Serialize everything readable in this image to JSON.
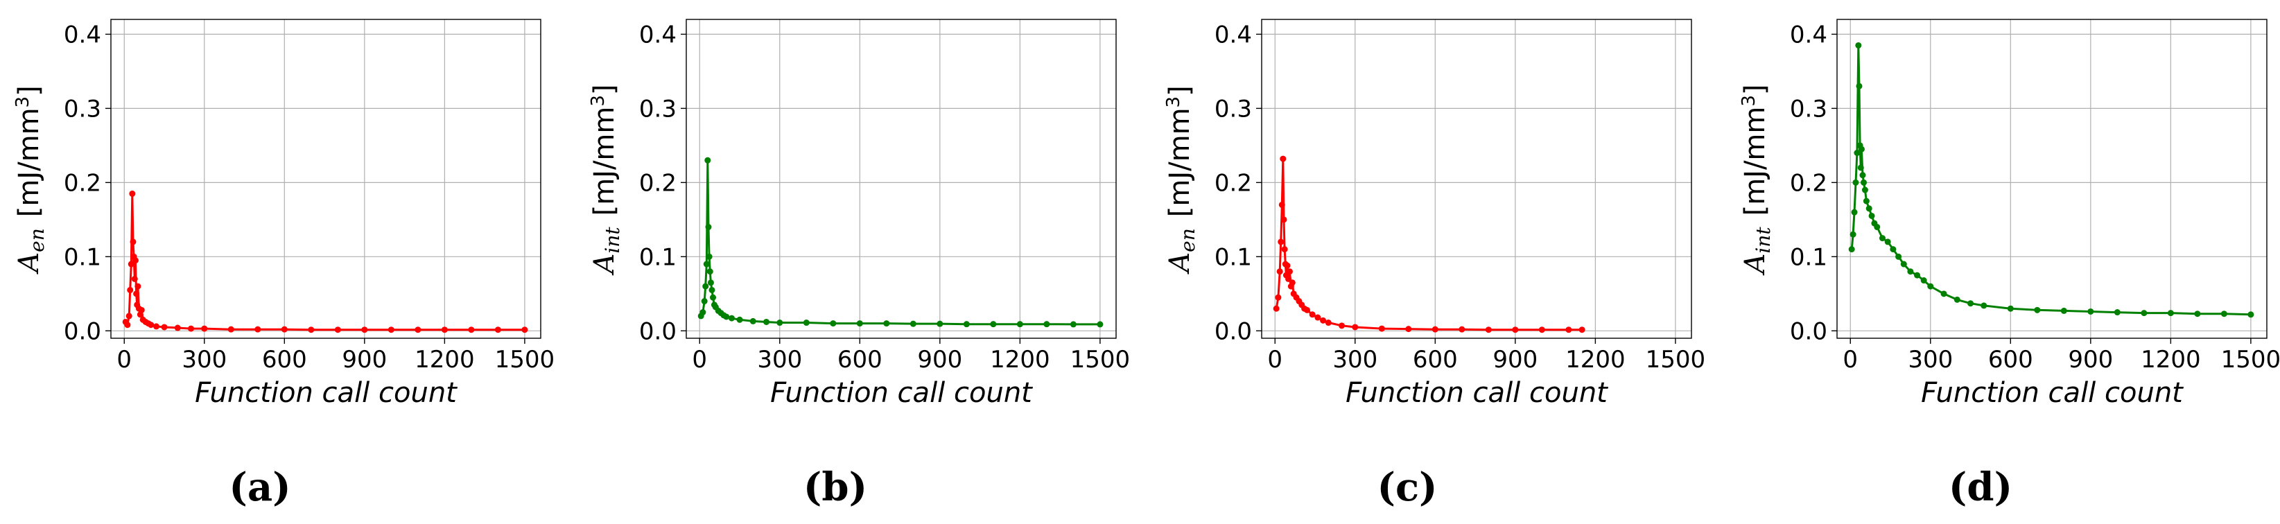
{
  "chart_data": [
    {
      "type": "line",
      "panel": "(a)",
      "xlabel": "Function call count",
      "ylabel_symbol": "A",
      "ylabel_sub": "en",
      "ylabel_unit": "[mJ/mm",
      "ylabel_unit_sup": "3",
      "ylabel_unit_close": "]",
      "color": "#ff0000",
      "xlim": [
        -50,
        1560
      ],
      "ylim": [
        -0.01,
        0.42
      ],
      "x_ticks": [
        0,
        300,
        600,
        900,
        1200,
        1500
      ],
      "y_ticks": [
        0.0,
        0.1,
        0.2,
        0.3,
        0.4
      ],
      "x_tick_labels": [
        "0",
        "300",
        "600",
        "900",
        "1200",
        "1500"
      ],
      "y_tick_labels": [
        "0.0",
        "0.1",
        "0.2",
        "0.3",
        "0.4"
      ],
      "grid": true,
      "series": [
        {
          "x": [
            5,
            12,
            18,
            22,
            26,
            30,
            33,
            36,
            39,
            42,
            45,
            48,
            51,
            55,
            60,
            65,
            70,
            80,
            90,
            100,
            120,
            150,
            200,
            250,
            300,
            400,
            500,
            600,
            700,
            800,
            900,
            1000,
            1100,
            1200,
            1300,
            1400,
            1500
          ],
          "y": [
            0.012,
            0.008,
            0.02,
            0.055,
            0.09,
            0.185,
            0.12,
            0.1,
            0.07,
            0.095,
            0.05,
            0.035,
            0.06,
            0.03,
            0.022,
            0.028,
            0.015,
            0.012,
            0.01,
            0.008,
            0.006,
            0.005,
            0.004,
            0.003,
            0.003,
            0.002,
            0.002,
            0.002,
            0.0015,
            0.0015,
            0.0015,
            0.0015,
            0.0015,
            0.0015,
            0.0015,
            0.0015,
            0.0015
          ]
        }
      ]
    },
    {
      "type": "line",
      "panel": "(b)",
      "xlabel": "Function call count",
      "ylabel_symbol": "A",
      "ylabel_sub": "int",
      "ylabel_unit": "[mJ/mm",
      "ylabel_unit_sup": "3",
      "ylabel_unit_close": "]",
      "color": "#008000",
      "xlim": [
        -50,
        1560
      ],
      "ylim": [
        -0.01,
        0.42
      ],
      "x_ticks": [
        0,
        300,
        600,
        900,
        1200,
        1500
      ],
      "y_ticks": [
        0.0,
        0.1,
        0.2,
        0.3,
        0.4
      ],
      "x_tick_labels": [
        "0",
        "300",
        "600",
        "900",
        "1200",
        "1500"
      ],
      "y_tick_labels": [
        "0.0",
        "0.1",
        "0.2",
        "0.3",
        "0.4"
      ],
      "grid": true,
      "series": [
        {
          "x": [
            5,
            12,
            18,
            22,
            26,
            30,
            33,
            36,
            39,
            42,
            46,
            50,
            55,
            60,
            70,
            80,
            90,
            100,
            120,
            150,
            200,
            250,
            300,
            400,
            500,
            600,
            700,
            800,
            900,
            1000,
            1100,
            1200,
            1300,
            1400,
            1500
          ],
          "y": [
            0.02,
            0.025,
            0.04,
            0.06,
            0.09,
            0.23,
            0.14,
            0.1,
            0.08,
            0.065,
            0.055,
            0.045,
            0.035,
            0.032,
            0.027,
            0.024,
            0.021,
            0.019,
            0.017,
            0.015,
            0.013,
            0.012,
            0.011,
            0.011,
            0.01,
            0.01,
            0.01,
            0.0095,
            0.0095,
            0.009,
            0.009,
            0.009,
            0.009,
            0.0088,
            0.0088
          ]
        }
      ]
    },
    {
      "type": "line",
      "panel": "(c)",
      "xlabel": "Function call count",
      "ylabel_symbol": "A",
      "ylabel_sub": "en",
      "ylabel_unit": "[mJ/mm",
      "ylabel_unit_sup": "3",
      "ylabel_unit_close": "]",
      "color": "#ff0000",
      "xlim": [
        -50,
        1560
      ],
      "ylim": [
        -0.01,
        0.42
      ],
      "x_ticks": [
        0,
        300,
        600,
        900,
        1200,
        1500
      ],
      "y_ticks": [
        0.0,
        0.1,
        0.2,
        0.3,
        0.4
      ],
      "x_tick_labels": [
        "0",
        "300",
        "600",
        "900",
        "1200",
        "1500"
      ],
      "y_tick_labels": [
        "0.0",
        "0.1",
        "0.2",
        "0.3",
        "0.4"
      ],
      "grid": true,
      "series": [
        {
          "x": [
            5,
            12,
            18,
            22,
            26,
            30,
            33,
            36,
            39,
            42,
            46,
            50,
            55,
            60,
            65,
            70,
            80,
            90,
            100,
            110,
            120,
            140,
            160,
            180,
            200,
            250,
            300,
            400,
            500,
            600,
            700,
            800,
            900,
            1000,
            1100,
            1150
          ],
          "y": [
            0.03,
            0.045,
            0.08,
            0.12,
            0.17,
            0.232,
            0.15,
            0.11,
            0.09,
            0.075,
            0.088,
            0.07,
            0.08,
            0.06,
            0.065,
            0.05,
            0.045,
            0.04,
            0.035,
            0.03,
            0.028,
            0.022,
            0.018,
            0.014,
            0.011,
            0.007,
            0.005,
            0.003,
            0.0025,
            0.002,
            0.002,
            0.0015,
            0.0015,
            0.0015,
            0.0015,
            0.0015
          ]
        }
      ]
    },
    {
      "type": "line",
      "panel": "(d)",
      "xlabel": "Function call count",
      "ylabel_symbol": "A",
      "ylabel_sub": "int",
      "ylabel_unit": "[mJ/mm",
      "ylabel_unit_sup": "3",
      "ylabel_unit_close": "]",
      "color": "#008000",
      "xlim": [
        -50,
        1560
      ],
      "ylim": [
        -0.01,
        0.42
      ],
      "x_ticks": [
        0,
        300,
        600,
        900,
        1200,
        1500
      ],
      "y_ticks": [
        0.0,
        0.1,
        0.2,
        0.3,
        0.4
      ],
      "x_tick_labels": [
        "0",
        "300",
        "600",
        "900",
        "1200",
        "1500"
      ],
      "y_tick_labels": [
        "0.0",
        "0.1",
        "0.2",
        "0.3",
        "0.4"
      ],
      "grid": true,
      "series": [
        {
          "x": [
            5,
            10,
            15,
            20,
            25,
            30,
            33,
            36,
            39,
            42,
            46,
            50,
            55,
            60,
            70,
            80,
            90,
            100,
            120,
            140,
            160,
            180,
            200,
            225,
            250,
            275,
            300,
            350,
            400,
            450,
            500,
            600,
            700,
            800,
            900,
            1000,
            1100,
            1200,
            1300,
            1400,
            1500
          ],
          "y": [
            0.11,
            0.13,
            0.16,
            0.2,
            0.24,
            0.385,
            0.33,
            0.25,
            0.22,
            0.245,
            0.21,
            0.2,
            0.19,
            0.175,
            0.165,
            0.155,
            0.145,
            0.14,
            0.125,
            0.12,
            0.11,
            0.1,
            0.09,
            0.08,
            0.075,
            0.068,
            0.06,
            0.05,
            0.042,
            0.037,
            0.034,
            0.03,
            0.028,
            0.027,
            0.026,
            0.025,
            0.024,
            0.024,
            0.023,
            0.023,
            0.022
          ]
        }
      ]
    }
  ]
}
